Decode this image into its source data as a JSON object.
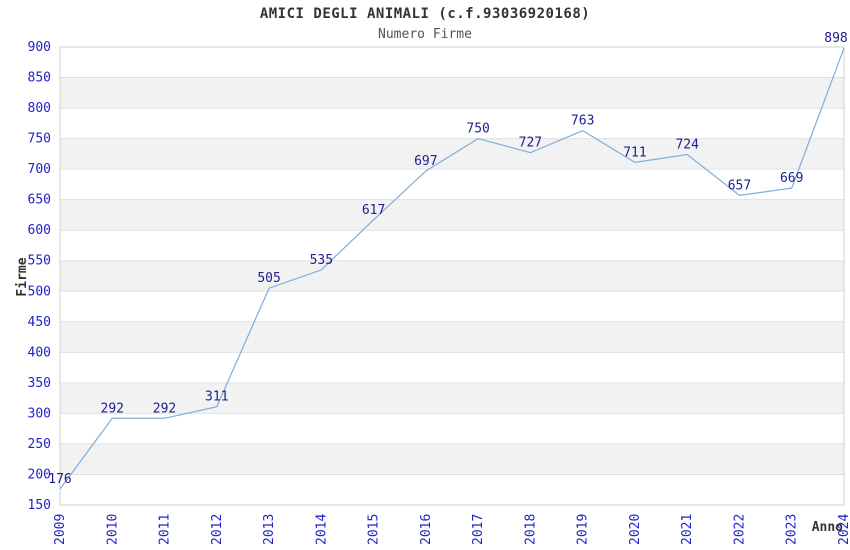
{
  "chart_data": {
    "type": "line",
    "title": "AMICI DEGLI ANIMALI (c.f.93036920168)",
    "subtitle": "Numero Firme",
    "xlabel": "Anno",
    "ylabel": "Firme",
    "categories": [
      "2009",
      "2010",
      "2011",
      "2012",
      "2013",
      "2014",
      "2015",
      "2016",
      "2017",
      "2018",
      "2019",
      "2020",
      "2021",
      "2022",
      "2023",
      "2024"
    ],
    "values": [
      176,
      292,
      292,
      311,
      505,
      535,
      617,
      697,
      750,
      727,
      763,
      711,
      724,
      657,
      669,
      898
    ],
    "ylim": [
      150,
      900
    ],
    "ytick_step": 50,
    "grid": true,
    "legend": "none",
    "band_style": "alternating-horizontal",
    "colors": {
      "line": "#7fadda",
      "point_label": "#202090",
      "tick_label": "#2222cc",
      "axis_title": "#333333",
      "grid_line": "#e0e0e0",
      "band_fill": "#f2f2f2",
      "plot_border": "#d0d0d0",
      "title_text": "#333333",
      "subtitle_text": "#555555",
      "background": "#ffffff"
    }
  }
}
